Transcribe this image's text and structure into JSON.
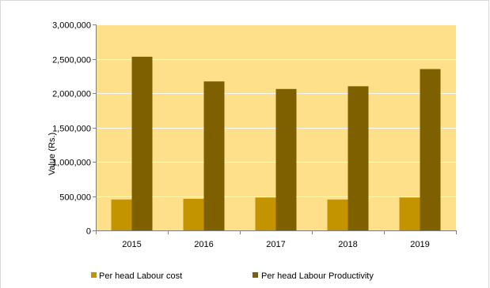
{
  "chart_data": {
    "type": "bar",
    "title": "",
    "xlabel": "",
    "ylabel": "Value (Rs.)",
    "categories": [
      "2015",
      "2016",
      "2017",
      "2018",
      "2019"
    ],
    "series": [
      {
        "name": "Per head Labour cost",
        "values": [
          450000,
          460000,
          480000,
          450000,
          480000
        ],
        "color": "#c39300"
      },
      {
        "name": "Per head Labour Productivity",
        "values": [
          2530000,
          2170000,
          2060000,
          2100000,
          2350000
        ],
        "color": "#7f6000"
      }
    ],
    "ylim": [
      0,
      3000000
    ],
    "yticks": [
      0,
      500000,
      1000000,
      1500000,
      2000000,
      2500000,
      3000000
    ],
    "ytick_labels": [
      "0",
      "500,000",
      "1,000,000",
      "1,500,000",
      "2,000,000",
      "2,500,000",
      "3,000,000"
    ],
    "grid": true,
    "legend_position": "bottom",
    "plot_background": "#ffe08a",
    "gridline_color": "#ffffff",
    "axis_color": "#808080"
  }
}
